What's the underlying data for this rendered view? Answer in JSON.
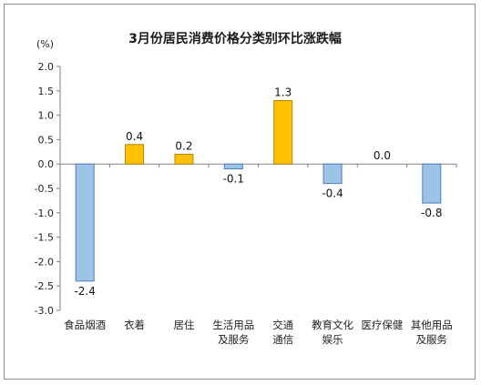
{
  "chart_data": {
    "type": "bar",
    "title": "3月份居民消费价格分类别环比涨跌幅",
    "unit_label": "(%)",
    "ylim": [
      -3.0,
      2.0
    ],
    "yticks": [
      "2.0",
      "1.5",
      "1.0",
      "0.5",
      "0.0",
      "-0.5",
      "-1.0",
      "-1.5",
      "-2.0",
      "-2.5",
      "-3.0"
    ],
    "ytick_values": [
      2.0,
      1.5,
      1.0,
      0.5,
      0.0,
      -0.5,
      -1.0,
      -1.5,
      -2.0,
      -2.5,
      -3.0
    ],
    "grid": false,
    "categories": [
      [
        "食品烟酒"
      ],
      [
        "衣着"
      ],
      [
        "居住"
      ],
      [
        "生活用品",
        "及服务"
      ],
      [
        "交通",
        "通信"
      ],
      [
        "教育文化",
        "娱乐"
      ],
      [
        "医疗保健"
      ],
      [
        "其他用品",
        "及服务"
      ]
    ],
    "values": [
      -2.4,
      0.4,
      0.2,
      -0.1,
      1.3,
      -0.4,
      0.0,
      -0.8
    ],
    "value_labels": [
      "-2.4",
      "0.4",
      "0.2",
      "-0.1",
      "1.3",
      "-0.4",
      "0.0",
      "-0.8"
    ],
    "colors": {
      "positive_fill": "#FFC000",
      "positive_stroke": "#B8860B",
      "negative_fill": "#9DC3E6",
      "negative_stroke": "#4A7EBB",
      "axis": "#808080"
    }
  }
}
